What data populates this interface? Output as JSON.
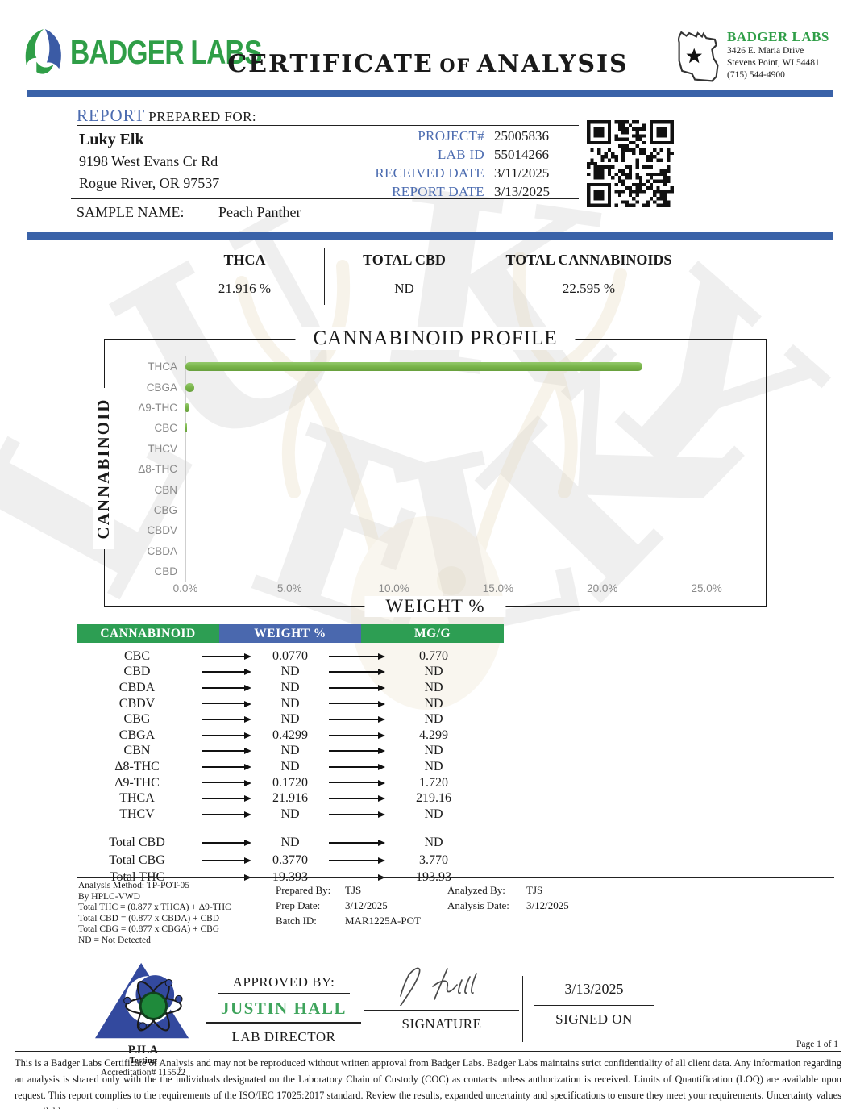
{
  "header": {
    "brand": "BADGER LABS",
    "title_part1": "CERTIFICATE",
    "title_part2": "OF",
    "title_part3": "ANALYSIS",
    "lab_name": "BADGER LABS",
    "lab_address1": "3426 E. Maria Drive",
    "lab_address2": "Stevens Point, WI 54481",
    "lab_phone": "(715) 544-4900"
  },
  "report": {
    "section_word": "REPORT",
    "section_rest": "PREPARED FOR:",
    "client_name": "Luky Elk",
    "client_address1": "9198 West Evans Cr Rd",
    "client_address2": "Rogue River, OR 97537",
    "fields": [
      {
        "label": "PROJECT#",
        "value": "25005836"
      },
      {
        "label": "LAB ID",
        "value": "55014266"
      },
      {
        "label": "RECEIVED DATE",
        "value": "3/11/2025"
      },
      {
        "label": "REPORT DATE",
        "value": "3/13/2025"
      }
    ],
    "sample_name_label": "SAMPLE NAME:",
    "sample_name": "Peach Panther"
  },
  "summary": [
    {
      "label": "THCA",
      "value": "21.916 %"
    },
    {
      "label": "TOTAL CBD",
      "value": "ND"
    },
    {
      "label": "TOTAL CANNABINOIDS",
      "value": "22.595 %"
    }
  ],
  "chart_data": {
    "type": "bar",
    "orientation": "horizontal",
    "title": "CANNABINOID PROFILE",
    "xlabel": "WEIGHT %",
    "ylabel": "CANNABINOID",
    "categories": [
      "THCA",
      "CBGA",
      "Δ9-THC",
      "CBC",
      "THCV",
      "Δ8-THC",
      "CBN",
      "CBG",
      "CBDV",
      "CBDA",
      "CBD"
    ],
    "values": [
      21.916,
      0.4299,
      0.172,
      0.077,
      0,
      0,
      0,
      0,
      0,
      0,
      0
    ],
    "xlim": [
      0,
      27.8
    ],
    "xticks": [
      0,
      5,
      10,
      15,
      20,
      25
    ],
    "xtick_labels": [
      "0.0%",
      "5.0%",
      "10.0%",
      "15.0%",
      "20.0%",
      "25.0%"
    ],
    "grid": false,
    "bar_color": "#76b247"
  },
  "results_table": {
    "headers": [
      "CANNABINOID",
      "WEIGHT %",
      "MG/G"
    ],
    "rows": [
      [
        "CBC",
        "0.0770",
        "0.770"
      ],
      [
        "CBD",
        "ND",
        "ND"
      ],
      [
        "CBDA",
        "ND",
        "ND"
      ],
      [
        "CBDV",
        "ND",
        "ND"
      ],
      [
        "CBG",
        "ND",
        "ND"
      ],
      [
        "CBGA",
        "0.4299",
        "4.299"
      ],
      [
        "CBN",
        "ND",
        "ND"
      ],
      [
        "Δ8-THC",
        "ND",
        "ND"
      ],
      [
        "Δ9-THC",
        "0.1720",
        "1.720"
      ],
      [
        "THCA",
        "21.916",
        "219.16"
      ],
      [
        "THCV",
        "ND",
        "ND"
      ]
    ],
    "totals": [
      [
        "Total CBD",
        "ND",
        "ND"
      ],
      [
        "Total CBG",
        "0.3770",
        "3.770"
      ],
      [
        "Total THC",
        "19.393",
        "193.93"
      ]
    ]
  },
  "methods": {
    "left_lines": [
      "Analysis Method: TP-POT-05",
      "By HPLC-VWD",
      "Total THC = (0.877 x  THCA) + Δ9-THC",
      "Total CBD = (0.877 x  CBDA) + CBD",
      "Total CBG = (0.877 x  CBGA) + CBG",
      "ND = Not Detected"
    ],
    "middle": [
      {
        "label": "Prepared By:",
        "value": "TJS"
      },
      {
        "label": "Prep Date:",
        "value": "3/12/2025"
      },
      {
        "label": "Batch ID:",
        "value": "MAR1225A-POT"
      }
    ],
    "right": [
      {
        "label": "Analyzed By:",
        "value": "TJS"
      },
      {
        "label": "Analysis Date:",
        "value": "3/12/2025"
      }
    ]
  },
  "approval": {
    "approved_by_label": "APPROVED BY:",
    "name": "JUSTIN HALL",
    "role": "LAB DIRECTOR",
    "signature_label": "SIGNATURE",
    "signed_on_label": "SIGNED ON",
    "signed_date": "3/13/2025",
    "pjla_name": "PJLA",
    "pjla_sub": "Testing",
    "accreditation": "Accreditation# 115522"
  },
  "footer": {
    "page": "Page 1 of 1",
    "disclaimer": "This is a Badger Labs Certificate of Analysis and may not be reproduced without written approval from Badger Labs. Badger Labs maintains strict confidentiality of all client data. Any information regarding an analysis is shared only with the the individuals designated on the Laboratory Chain of Custody (COC) as contacts unless authorization is received. Limits of Quantification (LOQ) are available upon request. This report complies to the requirements of the ISO/IEC 17025:2017 standard. Review the results, expanded uncertainty and specifications to ensure they meet your requirements. Uncertainty values are available upon request."
  },
  "icons": {
    "brand_mark": "badger-leaf-logo",
    "state_outline": "wisconsin-map-icon",
    "qr": "qr-code",
    "pjla": "pjla-atom-logo",
    "signature": "signature-script"
  },
  "colors": {
    "accent_blue": "#3a62a8",
    "accent_green": "#2d9e53",
    "bar_green": "#76b247",
    "label_blue": "#4c6cb0",
    "name_green": "#3fa45c"
  }
}
